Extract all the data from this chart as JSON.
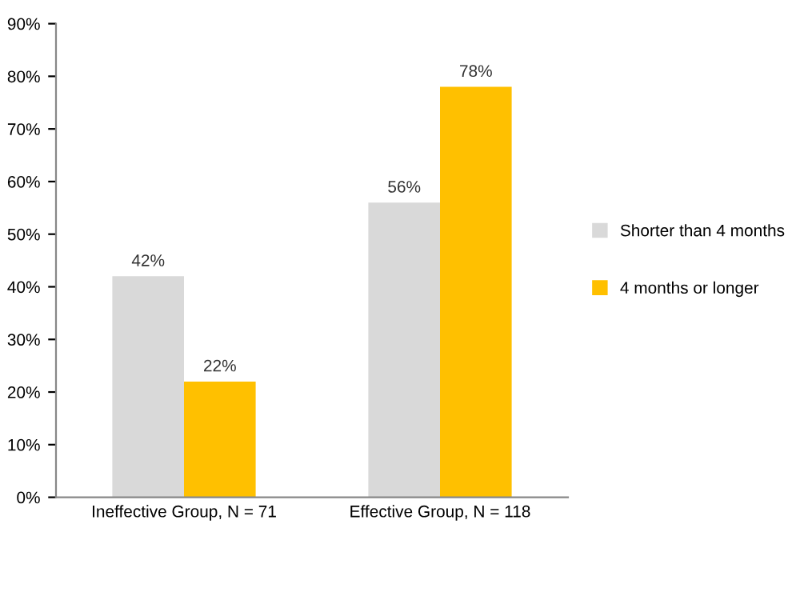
{
  "chart_data": {
    "type": "bar",
    "categories": [
      "Ineffective Group, N = 71",
      "Effective Group, N = 118"
    ],
    "series": [
      {
        "name": "Shorter than 4 months",
        "color": "#d9d9d9",
        "values": [
          42,
          56
        ],
        "value_labels": [
          "42%",
          "56%"
        ]
      },
      {
        "name": "4 months or longer",
        "color": "#ffc000",
        "values": [
          22,
          78
        ],
        "value_labels": [
          "22%",
          "78%"
        ]
      }
    ],
    "ylim": [
      0,
      90
    ],
    "yticks": [
      {
        "value": 0,
        "label": "0%"
      },
      {
        "value": 10,
        "label": "10%"
      },
      {
        "value": 20,
        "label": "20%"
      },
      {
        "value": 30,
        "label": "30%"
      },
      {
        "value": 40,
        "label": "40%"
      },
      {
        "value": 50,
        "label": "50%"
      },
      {
        "value": 60,
        "label": "60%"
      },
      {
        "value": 70,
        "label": "70%"
      },
      {
        "value": 80,
        "label": "80%"
      },
      {
        "value": 90,
        "label": "90%"
      }
    ],
    "grid": false,
    "legend": "right"
  }
}
